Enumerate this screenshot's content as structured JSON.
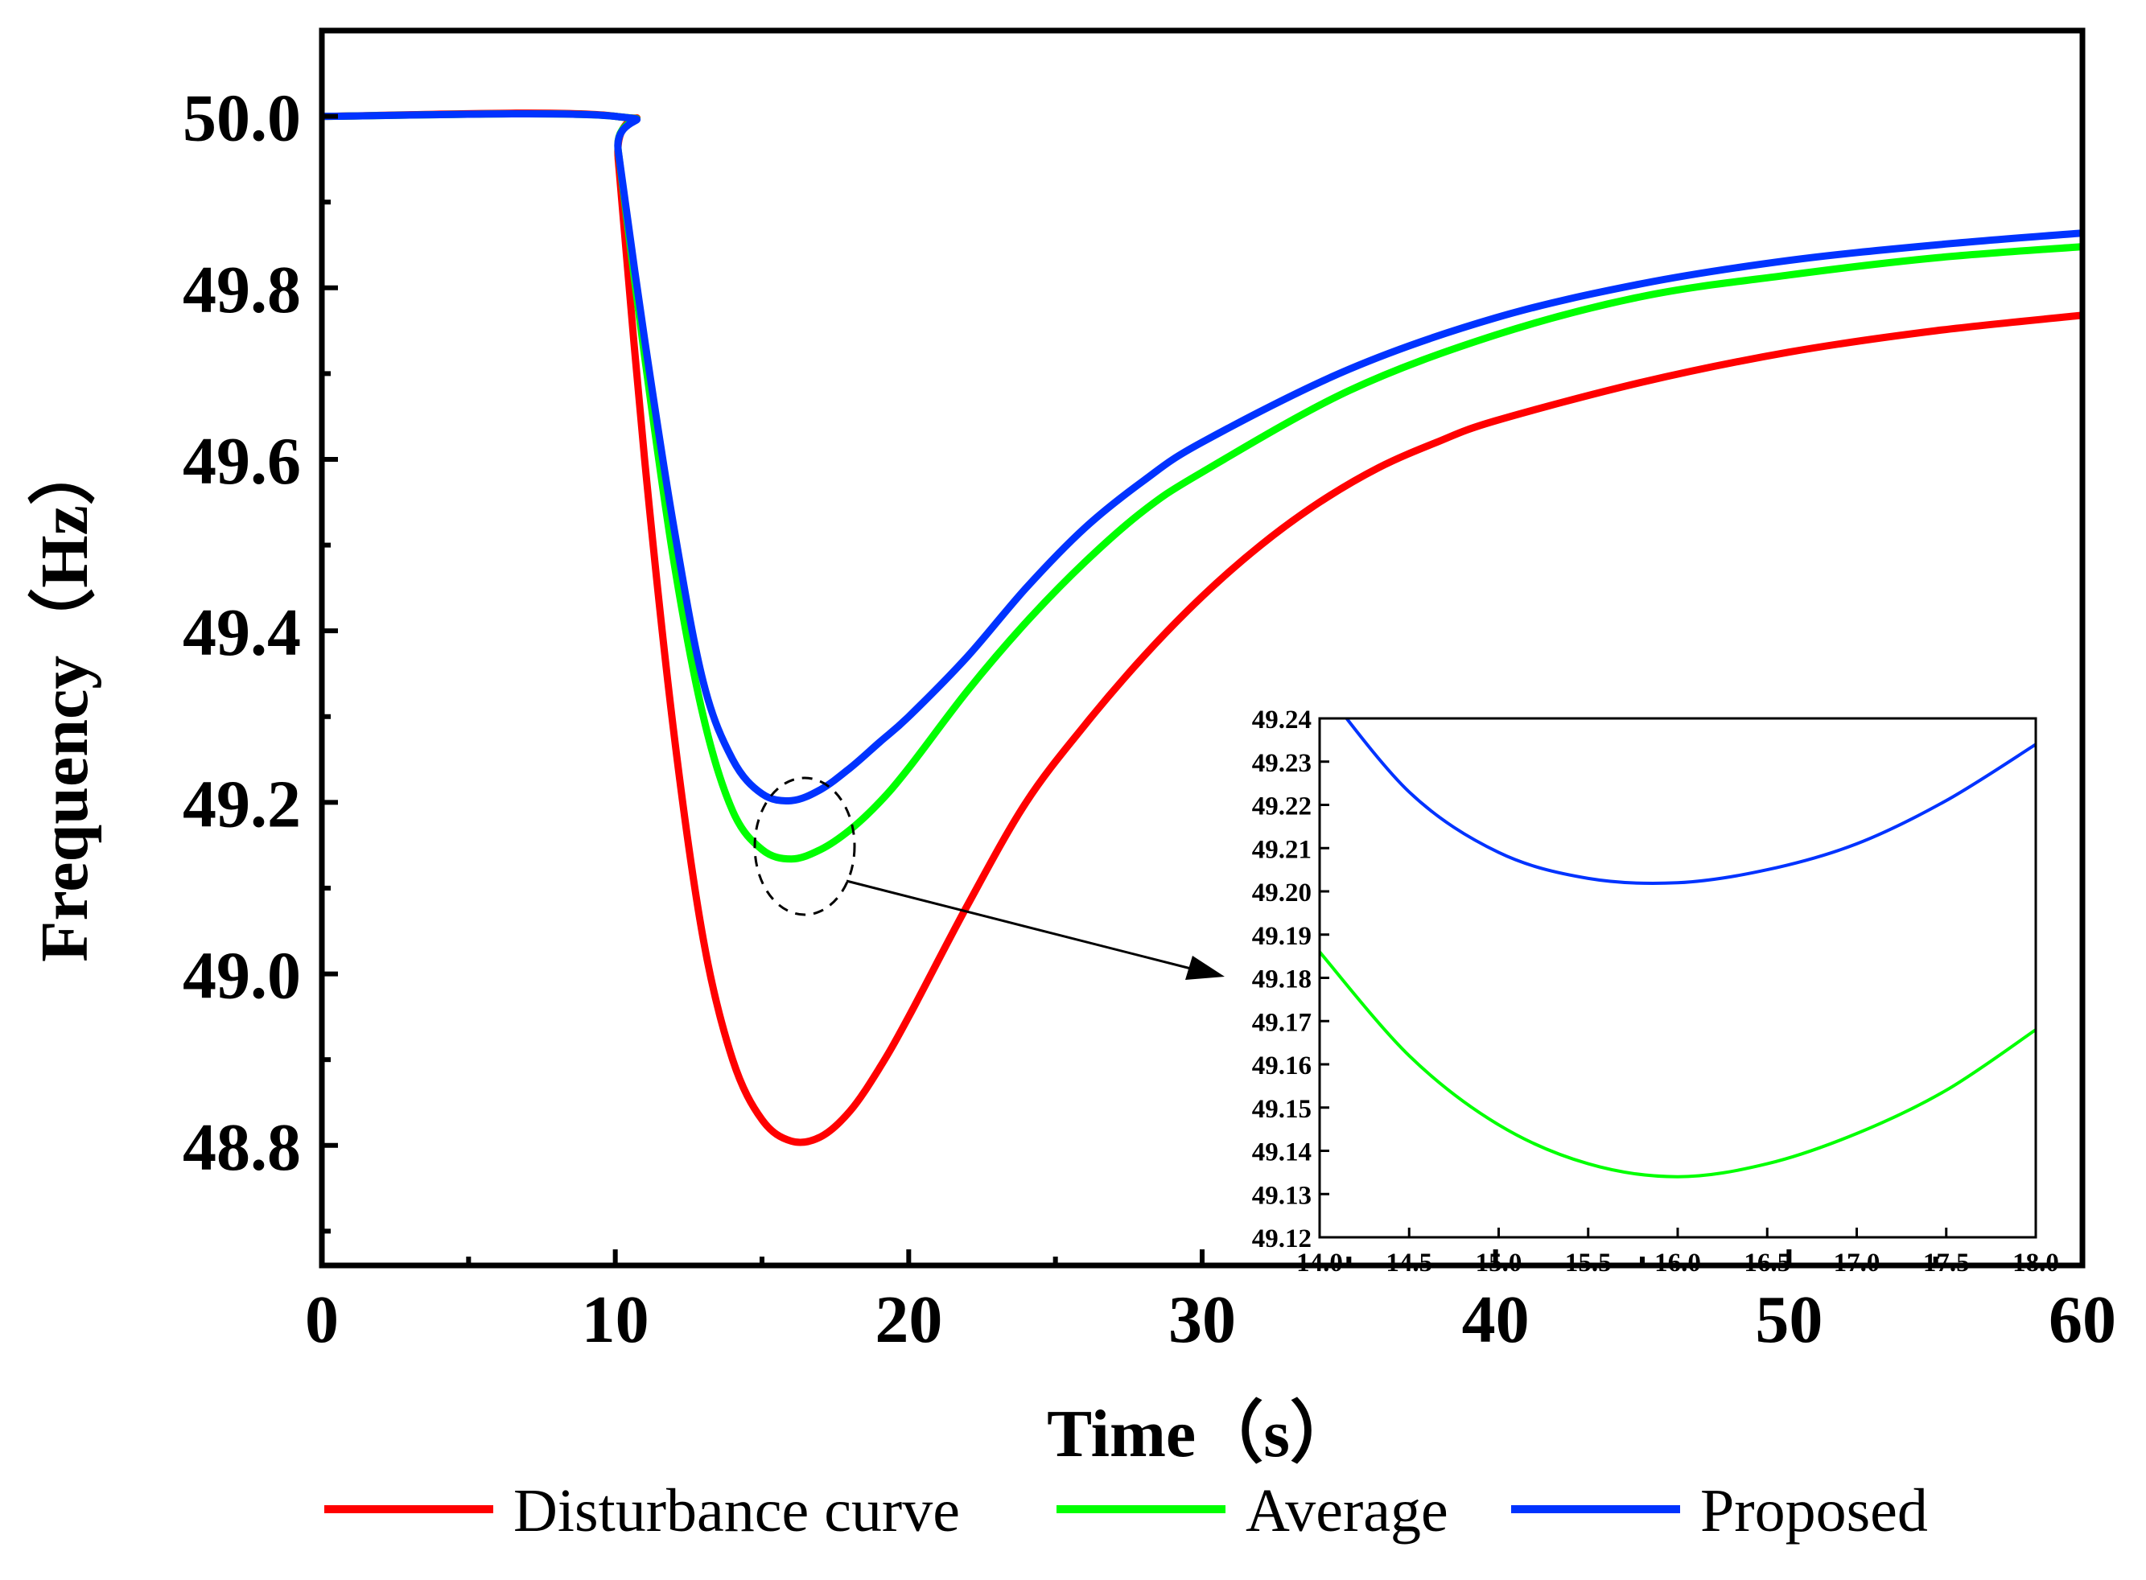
{
  "chart_data": {
    "type": "line",
    "xlabel": "Time（s）",
    "ylabel": "Frequency（Hz）",
    "xlim": [
      0,
      60
    ],
    "ylim": [
      48.66,
      50.1
    ],
    "x_ticks": [
      "0",
      "10",
      "20",
      "30",
      "40",
      "50",
      "60"
    ],
    "y_ticks": [
      "48.8",
      "49.0",
      "49.2",
      "49.4",
      "49.6",
      "49.8",
      "50.0"
    ],
    "legend_position": "bottom",
    "series": [
      {
        "name": "Disturbance curve",
        "color": "#ff0000",
        "x": [
          0,
          10,
          10.1,
          11,
          12,
          13,
          14,
          15,
          16,
          17,
          18,
          19,
          20,
          22,
          24,
          26,
          28,
          30,
          32,
          34,
          36,
          38,
          40,
          45,
          50,
          55,
          60
        ],
        "values": [
          50.0,
          50.0,
          49.95,
          49.6,
          49.28,
          49.04,
          48.9,
          48.83,
          48.805,
          48.81,
          48.84,
          48.89,
          48.95,
          49.08,
          49.2,
          49.29,
          49.37,
          49.44,
          49.5,
          49.55,
          49.59,
          49.62,
          49.645,
          49.69,
          49.725,
          49.75,
          49.768
        ]
      },
      {
        "name": "Average",
        "color": "#00ff00",
        "x": [
          0,
          10,
          10.1,
          11,
          12,
          13,
          14,
          15,
          16,
          17,
          18,
          19,
          20,
          22,
          24,
          26,
          28,
          30,
          35,
          40,
          45,
          50,
          55,
          60
        ],
        "values": [
          50.0,
          50.0,
          49.96,
          49.72,
          49.48,
          49.3,
          49.19,
          49.145,
          49.134,
          49.145,
          49.168,
          49.2,
          49.24,
          49.33,
          49.41,
          49.48,
          49.54,
          49.585,
          49.68,
          49.745,
          49.79,
          49.815,
          49.835,
          49.848
        ]
      },
      {
        "name": "Proposed",
        "color": "#0033ff",
        "x": [
          0,
          10,
          10.1,
          11,
          12,
          13,
          14,
          15,
          16,
          17,
          18,
          19,
          20,
          22,
          24,
          26,
          28,
          30,
          35,
          40,
          45,
          50,
          55,
          60
        ],
        "values": [
          50.0,
          50.0,
          49.96,
          49.74,
          49.52,
          49.34,
          49.25,
          49.21,
          49.202,
          49.215,
          49.24,
          49.27,
          49.3,
          49.37,
          49.45,
          49.52,
          49.575,
          49.62,
          49.705,
          49.765,
          49.805,
          49.832,
          49.85,
          49.864
        ]
      }
    ],
    "inset": {
      "xlim": [
        14.0,
        18.0
      ],
      "ylim": [
        49.12,
        49.24
      ],
      "x_ticks": [
        "14.0",
        "14.5",
        "15.0",
        "15.5",
        "16.0",
        "16.5",
        "17.0",
        "17.5",
        "18.0"
      ],
      "y_ticks": [
        "49.12",
        "49.13",
        "49.14",
        "49.15",
        "49.16",
        "49.17",
        "49.18",
        "49.19",
        "49.20",
        "49.21",
        "49.22",
        "49.23",
        "49.24"
      ],
      "series": [
        {
          "name": "Average",
          "color": "#00ff00",
          "x": [
            14.0,
            14.5,
            15.0,
            15.5,
            16.0,
            16.5,
            17.0,
            17.5,
            18.0
          ],
          "values": [
            49.186,
            49.162,
            49.146,
            49.137,
            49.134,
            49.137,
            49.144,
            49.154,
            49.168
          ]
        },
        {
          "name": "Proposed",
          "color": "#0033ff",
          "x": [
            14.0,
            14.5,
            15.0,
            15.5,
            16.0,
            16.5,
            17.0,
            17.5,
            18.0
          ],
          "values": [
            49.248,
            49.223,
            49.209,
            49.203,
            49.202,
            49.205,
            49.211,
            49.221,
            49.234
          ]
        }
      ]
    }
  }
}
